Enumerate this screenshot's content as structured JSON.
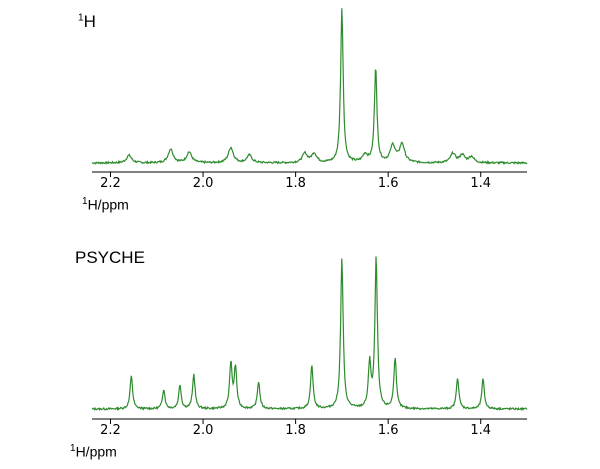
{
  "chart_data": [
    {
      "type": "line",
      "title_sup": "1",
      "title_main": "H",
      "xlabel_sup": "1",
      "xlabel_main": "H/ppm",
      "xlim": [
        2.24,
        1.3
      ],
      "x_reversed": true,
      "xticks": [
        2.2,
        2.0,
        1.8,
        1.6,
        1.4
      ],
      "xtick_labels": [
        "2.2",
        "2.0",
        "1.8",
        "1.6",
        "1.4"
      ],
      "line_color": "#2e8b2e",
      "y_unit": "normalized intensity (tallest peak = 1)",
      "peaks": [
        {
          "x": 1.7,
          "y": 1.0
        },
        {
          "x": 1.627,
          "y": 0.62
        },
        {
          "x": 2.16,
          "y": 0.05
        },
        {
          "x": 2.07,
          "y": 0.09
        },
        {
          "x": 2.03,
          "y": 0.07
        },
        {
          "x": 1.94,
          "y": 0.1
        },
        {
          "x": 1.9,
          "y": 0.05
        },
        {
          "x": 1.78,
          "y": 0.06
        },
        {
          "x": 1.76,
          "y": 0.06
        },
        {
          "x": 1.65,
          "y": 0.05
        },
        {
          "x": 1.59,
          "y": 0.11
        },
        {
          "x": 1.57,
          "y": 0.12
        },
        {
          "x": 1.46,
          "y": 0.06
        },
        {
          "x": 1.44,
          "y": 0.05
        },
        {
          "x": 1.42,
          "y": 0.04
        }
      ]
    },
    {
      "type": "line",
      "title": "PSYCHE",
      "xlabel_sup": "1",
      "xlabel_main": "H/ppm",
      "xlim": [
        2.24,
        1.3
      ],
      "x_reversed": true,
      "xticks": [
        2.2,
        2.0,
        1.8,
        1.6,
        1.4
      ],
      "xtick_labels": [
        "2.2",
        "2.0",
        "1.8",
        "1.6",
        "1.4"
      ],
      "line_color": "#2e8b2e",
      "y_unit": "normalized intensity (tallest peak = 1)",
      "peaks": [
        {
          "x": 2.155,
          "y": 0.22
        },
        {
          "x": 2.085,
          "y": 0.13
        },
        {
          "x": 2.05,
          "y": 0.16
        },
        {
          "x": 2.02,
          "y": 0.23
        },
        {
          "x": 1.94,
          "y": 0.3
        },
        {
          "x": 1.93,
          "y": 0.27
        },
        {
          "x": 1.88,
          "y": 0.18
        },
        {
          "x": 1.765,
          "y": 0.29
        },
        {
          "x": 1.7,
          "y": 1.0
        },
        {
          "x": 1.64,
          "y": 0.3
        },
        {
          "x": 1.626,
          "y": 1.0
        },
        {
          "x": 1.585,
          "y": 0.34
        },
        {
          "x": 1.45,
          "y": 0.21
        },
        {
          "x": 1.395,
          "y": 0.2
        }
      ]
    }
  ]
}
